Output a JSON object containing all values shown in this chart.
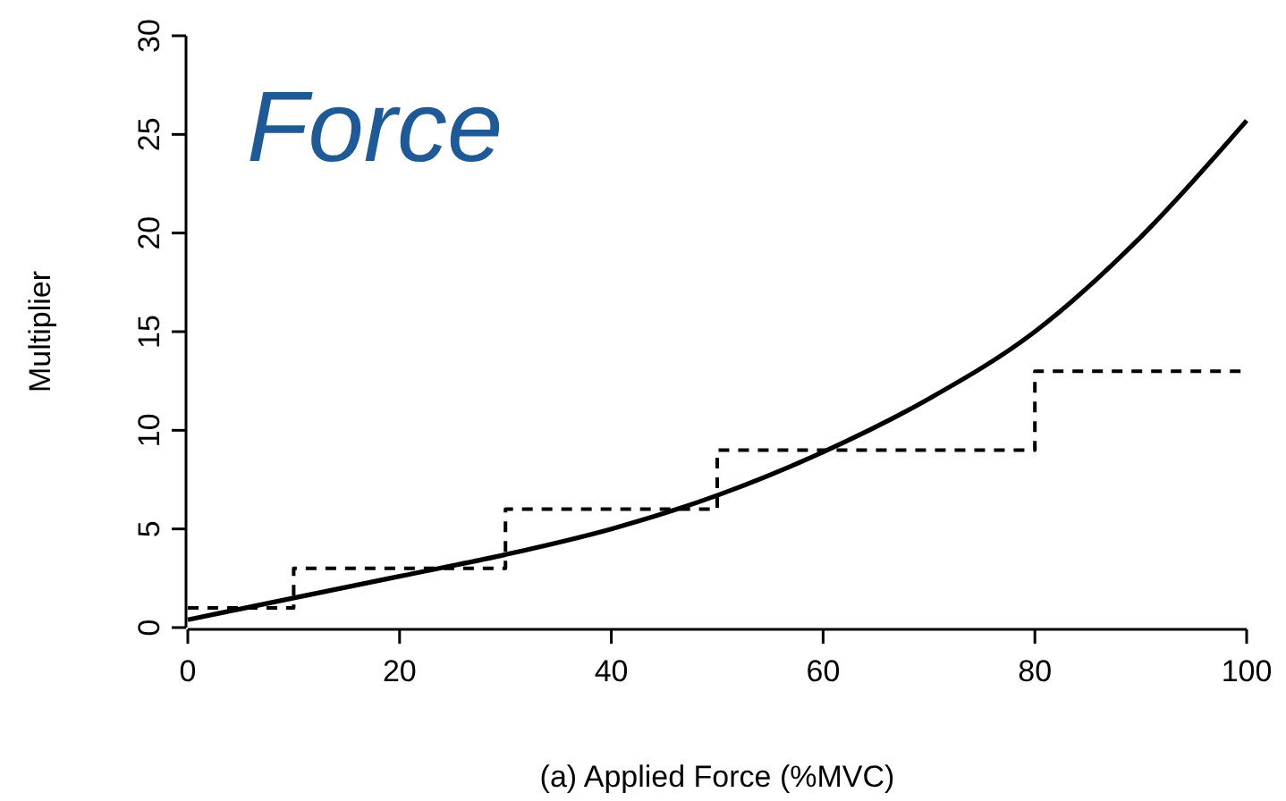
{
  "chart_data": {
    "type": "line",
    "title": "Force",
    "xlabel": "(a) Applied Force (%MVC)",
    "ylabel": "Multiplier",
    "xlim": [
      0,
      100
    ],
    "ylim": [
      0,
      30
    ],
    "xticks": [
      0,
      20,
      40,
      60,
      80,
      100
    ],
    "yticks": [
      0,
      5,
      10,
      15,
      20,
      25,
      30
    ],
    "grid": false,
    "marker": "none",
    "series": [
      {
        "color": "#000000",
        "line_style": "solid",
        "x": [
          0,
          10,
          20,
          30,
          40,
          50,
          60,
          70,
          80,
          90,
          100
        ],
        "values": [
          0.4,
          1.5,
          2.6,
          3.7,
          5.0,
          6.7,
          8.9,
          11.6,
          15.0,
          19.8,
          25.7
        ]
      },
      {
        "type": "step",
        "color": "#000000",
        "line_style": "dashed",
        "x": [
          0,
          10,
          30,
          50,
          80,
          100
        ],
        "values": [
          1,
          3,
          6,
          9,
          13,
          13
        ]
      }
    ]
  }
}
